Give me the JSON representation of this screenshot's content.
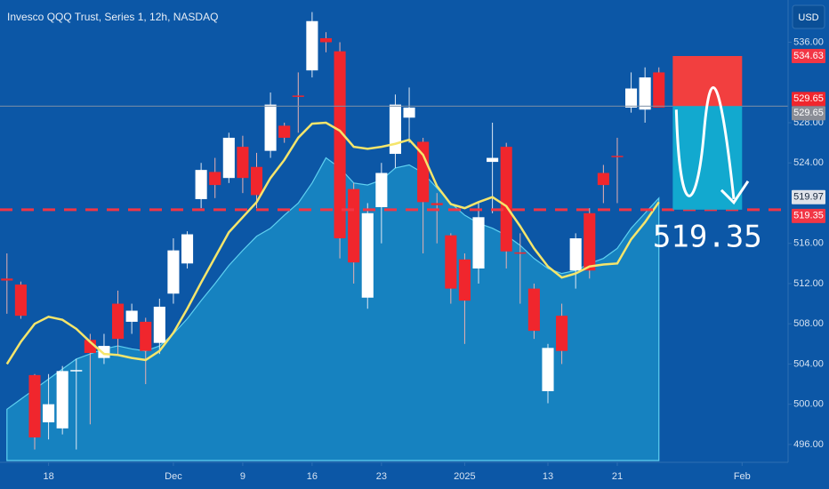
{
  "chart_data": {
    "type": "candlestick",
    "title": "Invesco QQQ Trust, Series 1, 12h, NASDAQ",
    "currency": "USD",
    "open": [
      512.5,
      511.9,
      502.9,
      498.2,
      497.6,
      503.3,
      506.4,
      504.6,
      510.0,
      508.2,
      508.2,
      506.1,
      511.0,
      514.0,
      520.4,
      523.1,
      522.5,
      525.6,
      523.6,
      525.2,
      527.7,
      530.7,
      533.2,
      536.4,
      535.1,
      521.4,
      510.6,
      519.6,
      524.9,
      528.5,
      526.1,
      520.0,
      516.8,
      514.4,
      513.5,
      524.1,
      525.6,
      515.1,
      511.5,
      501.3,
      508.8,
      513.3,
      519.0,
      523.0,
      524.7,
      529.5,
      529.3,
      533.0
    ],
    "high": [
      515,
      512.2,
      503,
      503,
      503.8,
      504.5,
      507,
      507,
      511.3,
      510,
      508.6,
      510.5,
      516.5,
      517.2,
      524,
      524.5,
      527,
      526.7,
      525,
      531,
      528,
      533,
      539,
      537,
      536,
      522,
      520,
      524,
      530.8,
      531.5,
      526.5,
      521,
      517,
      515,
      520,
      528,
      526,
      517,
      512,
      506,
      510,
      517,
      519.5,
      523.8,
      526.5,
      533,
      533.5,
      533.5
    ],
    "low": [
      509,
      508.5,
      495.5,
      496.5,
      497,
      495.5,
      498,
      504,
      505,
      507,
      502,
      505,
      510,
      513.5,
      519.5,
      520.5,
      522,
      521,
      519.5,
      524.5,
      526,
      527,
      532.5,
      535,
      514.5,
      512,
      509.5,
      516,
      523.5,
      526,
      515,
      516,
      510,
      506,
      512,
      519,
      513.5,
      510,
      506.5,
      500.1,
      504,
      511.5,
      512.5,
      520,
      520,
      529,
      528,
      529.5
    ],
    "close": [
      512.3,
      508.8,
      496.7,
      500.0,
      503.3,
      503.4,
      505.1,
      505.8,
      506.5,
      509.3,
      505.3,
      509.7,
      515.3,
      516.9,
      523.3,
      521.8,
      526.5,
      522.5,
      520.8,
      529.8,
      526.5,
      530.6,
      538.1,
      536.0,
      516.5,
      514.1,
      519.0,
      523.0,
      529.8,
      529.5,
      520.1,
      519.8,
      511.5,
      510.3,
      518.6,
      524.5,
      515.2,
      515.0,
      507.3,
      505.6,
      505.3,
      516.5,
      513.3,
      521.8,
      524.6,
      531.4,
      532.5,
      529.5
    ],
    "up_color": "#ffffff",
    "down_color": "#f0262d",
    "lines": [
      {
        "color": "#f5e56b",
        "values": [
          504.0,
          506.2,
          508.0,
          508.7,
          508.4,
          507.5,
          506.2,
          505.0,
          504.9,
          504.6,
          504.4,
          505.3,
          507.1,
          509.5,
          512.1,
          514.6,
          517.1,
          518.6,
          520.1,
          522.5,
          524.3,
          526.5,
          527.9,
          528.0,
          527.2,
          525.6,
          525.4,
          525.6,
          525.9,
          526.3,
          524.8,
          521.7,
          519.9,
          519.5,
          520.1,
          520.6,
          519.7,
          517.7,
          515.5,
          513.7,
          512.6,
          513.0,
          513.7,
          513.9,
          514.0,
          516.4,
          518.1,
          520.1
        ]
      }
    ],
    "area": {
      "color": "#1fa6d6",
      "values": [
        499.5,
        500.5,
        501.5,
        502.5,
        503.5,
        504.5,
        505.0,
        505.5,
        505.8,
        505.5,
        505.3,
        505.8,
        507.0,
        508.5,
        510.3,
        512.0,
        513.8,
        515.3,
        516.7,
        517.5,
        518.8,
        520.0,
        522.0,
        524.5,
        523.5,
        522.0,
        521.8,
        522.3,
        523.5,
        523.8,
        523.0,
        521.5,
        520.0,
        518.8,
        518.0,
        517.5,
        516.8,
        515.8,
        514.5,
        513.5,
        513.0,
        513.3,
        514.0,
        514.5,
        515.5,
        517.5,
        519.0,
        520.5
      ]
    },
    "xlim": [
      -0.5,
      56.25
    ],
    "xticks": [
      {
        "value": 3,
        "label": "18"
      },
      {
        "value": 12,
        "label": "Dec"
      },
      {
        "value": 17,
        "label": "9"
      },
      {
        "value": 22,
        "label": "16"
      },
      {
        "value": 27,
        "label": "23"
      },
      {
        "value": 33,
        "label": "2025"
      },
      {
        "value": 39,
        "label": "13"
      },
      {
        "value": 44,
        "label": "21"
      },
      {
        "value": 53,
        "label": "Feb"
      }
    ],
    "ylim": [
      494.4,
      540.2
    ],
    "yticks": [
      {
        "value": 536,
        "label": "536.00"
      },
      {
        "value": 528,
        "label": "528.00"
      },
      {
        "value": 524,
        "label": "524.00"
      },
      {
        "value": 516,
        "label": "516.00"
      },
      {
        "value": 512,
        "label": "512.00"
      },
      {
        "value": 508,
        "label": "508.00"
      },
      {
        "value": 504,
        "label": "504.00"
      },
      {
        "value": 500,
        "label": "500.00"
      },
      {
        "value": 496,
        "label": "496.00"
      }
    ],
    "price_levels": [
      {
        "value": 534.63,
        "label": "534.63",
        "color": "#f23645"
      },
      {
        "value": 529.65,
        "label": "529.65",
        "color": "#f0262d"
      },
      {
        "value": 529.65,
        "label": "529.65",
        "color": "#8a8d96"
      },
      {
        "value": 519.97,
        "label": "519.97",
        "color": "#dfe3ea"
      },
      {
        "value": 519.35,
        "label": "519.35",
        "color": "#f23645"
      }
    ],
    "target_box": {
      "x": [
        48,
        53
      ],
      "top": 534.63,
      "entry": 529.65,
      "target": 519.35,
      "target_label": "519.35",
      "top_color": "#f23f3f",
      "bottom_color": "#12a9cf"
    }
  }
}
